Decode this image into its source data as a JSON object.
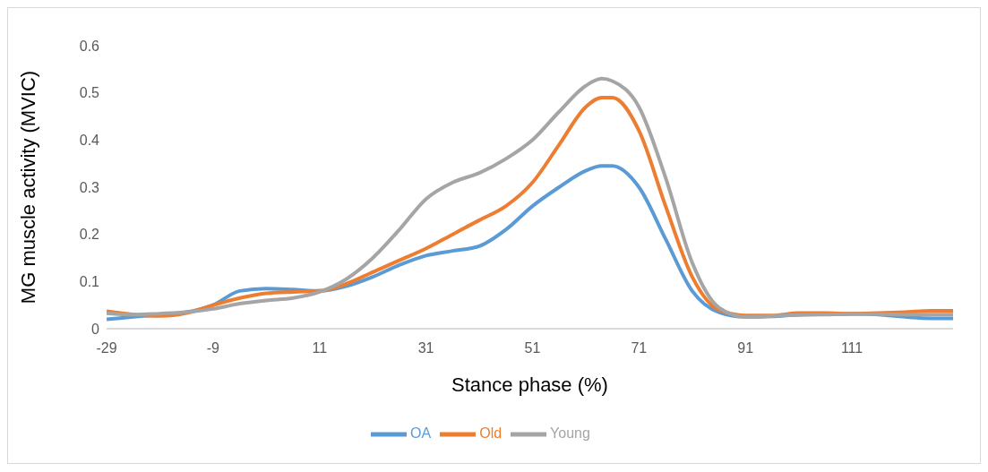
{
  "chart_data": {
    "type": "line",
    "xlabel": "Stance phase (%)",
    "ylabel": "MG muscle activity (MVIC)",
    "x": [
      -29,
      -24,
      -19,
      -14,
      -9,
      -4,
      1,
      6,
      11,
      16,
      21,
      26,
      31,
      36,
      41,
      46,
      51,
      56,
      61,
      64,
      66,
      71,
      76,
      81,
      86,
      91,
      96,
      101,
      106,
      111,
      116,
      121,
      126,
      130
    ],
    "xlim": [
      -29,
      130
    ],
    "xticks": [
      -29,
      -9,
      11,
      31,
      51,
      71,
      91,
      111
    ],
    "ylim": [
      0,
      0.6
    ],
    "yticks": [
      0,
      0.1,
      0.2,
      0.3,
      0.4,
      0.5,
      0.6
    ],
    "legend": "bottom",
    "marker": "none",
    "line_style": "solid",
    "series": [
      {
        "name": "OA",
        "color": "#5b9bd5",
        "values": [
          0.02,
          0.025,
          0.03,
          0.035,
          0.05,
          0.08,
          0.085,
          0.083,
          0.08,
          0.09,
          0.11,
          0.135,
          0.155,
          0.165,
          0.175,
          0.21,
          0.26,
          0.3,
          0.335,
          0.345,
          0.345,
          0.3,
          0.19,
          0.08,
          0.035,
          0.025,
          0.026,
          0.03,
          0.031,
          0.032,
          0.03,
          0.025,
          0.022,
          0.022
        ]
      },
      {
        "name": "Old",
        "color": "#ed7d31",
        "values": [
          0.037,
          0.03,
          0.027,
          0.033,
          0.05,
          0.065,
          0.075,
          0.078,
          0.08,
          0.095,
          0.12,
          0.145,
          0.17,
          0.2,
          0.23,
          0.26,
          0.31,
          0.39,
          0.47,
          0.49,
          0.49,
          0.42,
          0.26,
          0.11,
          0.04,
          0.028,
          0.028,
          0.033,
          0.033,
          0.032,
          0.033,
          0.035,
          0.038,
          0.038
        ]
      },
      {
        "name": "Young",
        "color": "#a5a5a5",
        "values": [
          0.033,
          0.03,
          0.032,
          0.035,
          0.042,
          0.053,
          0.06,
          0.065,
          0.078,
          0.105,
          0.15,
          0.21,
          0.275,
          0.31,
          0.33,
          0.36,
          0.4,
          0.46,
          0.515,
          0.53,
          0.525,
          0.47,
          0.32,
          0.14,
          0.045,
          0.025,
          0.027,
          0.029,
          0.03,
          0.031,
          0.031,
          0.03,
          0.03,
          0.03
        ]
      }
    ]
  }
}
